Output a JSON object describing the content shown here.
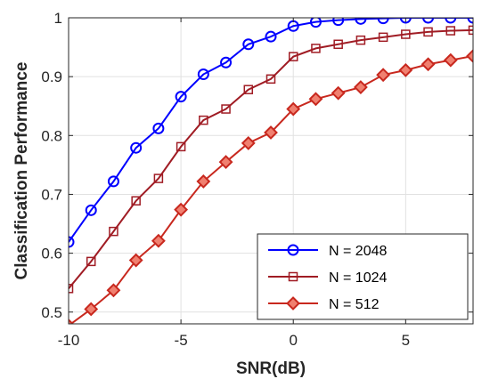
{
  "chart_data": {
    "type": "line",
    "title": "",
    "xlabel": "SNR(dB)",
    "ylabel": "Classification Performance",
    "xlim": [
      -10,
      8
    ],
    "ylim": [
      0.48,
      1.0
    ],
    "x": [
      -10,
      -9,
      -8,
      -7,
      -6,
      -5,
      -4,
      -3,
      -2,
      -1,
      0,
      1,
      2,
      3,
      4,
      5,
      6,
      7,
      8
    ],
    "x_ticks": [
      -10,
      -5,
      0,
      5
    ],
    "x_tick_labels": [
      "-10",
      "-5",
      "0",
      "5"
    ],
    "y_ticks": [
      0.5,
      0.6,
      0.7,
      0.8,
      0.9,
      1.0
    ],
    "y_tick_labels": [
      "0.5",
      "0.6",
      "0.7",
      "0.8",
      "0.9",
      "1"
    ],
    "grid": true,
    "legend_position": "bottom-right",
    "series": [
      {
        "name": "N = 2048",
        "color": "#0000ff",
        "marker": "circle",
        "values": [
          0.619,
          0.673,
          0.722,
          0.779,
          0.812,
          0.866,
          0.904,
          0.924,
          0.955,
          0.968,
          0.986,
          0.993,
          0.996,
          0.998,
          0.999,
          1.0,
          1.0,
          1.0,
          1.0
        ]
      },
      {
        "name": "N = 1024",
        "color": "#a01c24",
        "marker": "square",
        "values": [
          0.54,
          0.586,
          0.637,
          0.689,
          0.727,
          0.781,
          0.826,
          0.845,
          0.878,
          0.896,
          0.934,
          0.948,
          0.955,
          0.962,
          0.967,
          0.972,
          0.976,
          0.978,
          0.979
        ]
      },
      {
        "name": "N = 512",
        "color": "#c8281e",
        "fill": "#f08070",
        "marker": "diamond",
        "values": [
          0.477,
          0.505,
          0.537,
          0.588,
          0.621,
          0.674,
          0.722,
          0.755,
          0.787,
          0.805,
          0.845,
          0.862,
          0.872,
          0.882,
          0.903,
          0.911,
          0.921,
          0.928,
          0.935
        ]
      }
    ]
  }
}
